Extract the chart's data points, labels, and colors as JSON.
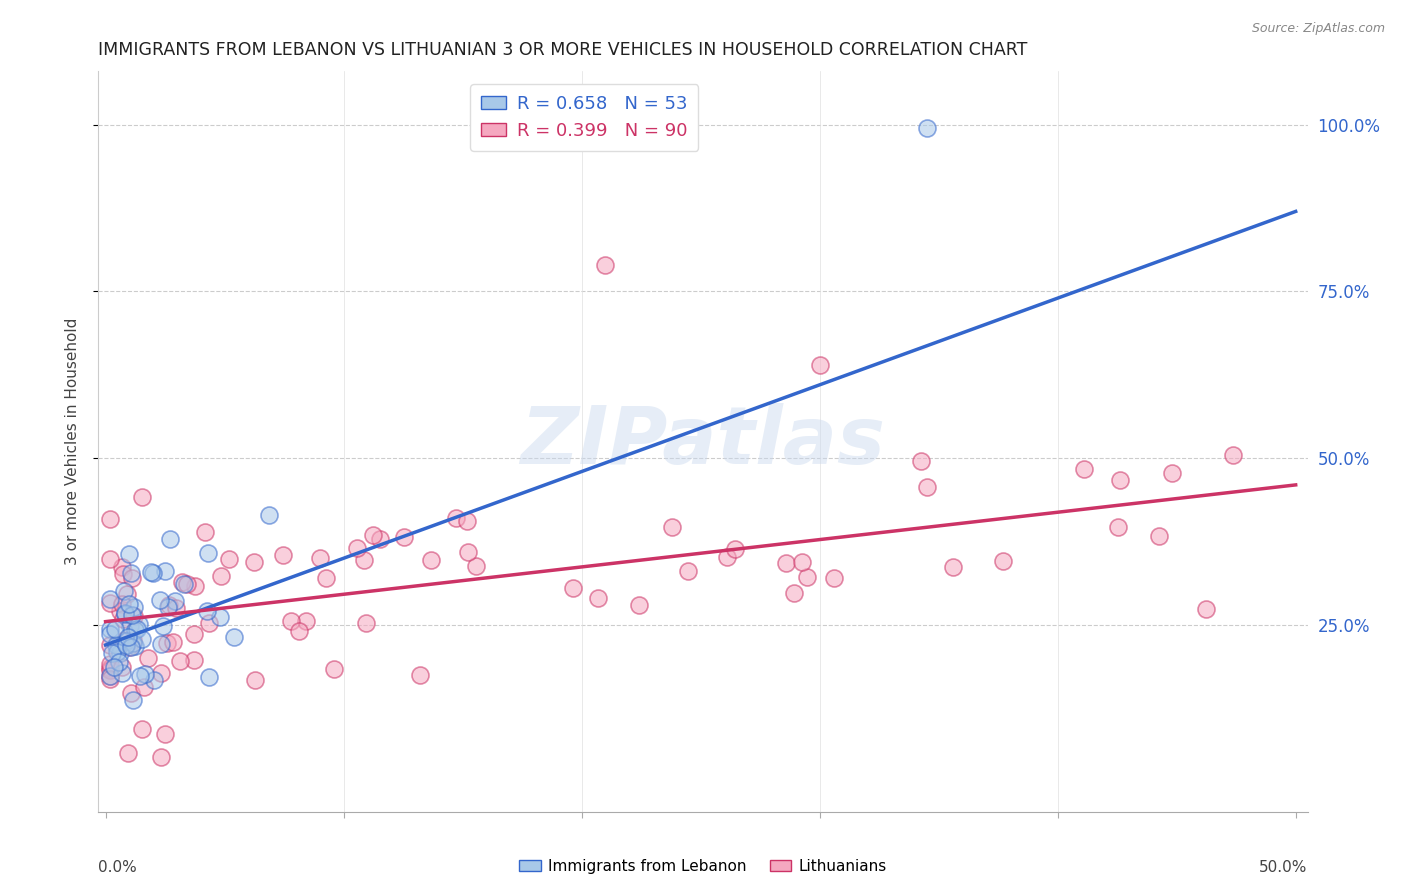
{
  "title": "IMMIGRANTS FROM LEBANON VS LITHUANIAN 3 OR MORE VEHICLES IN HOUSEHOLD CORRELATION CHART",
  "source": "Source: ZipAtlas.com",
  "ylabel": "3 or more Vehicles in Household",
  "ytick_values": [
    0.25,
    0.5,
    0.75,
    1.0
  ],
  "xlim": [
    0.0,
    0.5
  ],
  "ylim": [
    0.0,
    1.05
  ],
  "legend_label1": "R = 0.658   N = 53",
  "legend_label2": "R = 0.399   N = 90",
  "color_blue": "#a8c8e8",
  "color_pink": "#f5a8c0",
  "line_color_blue": "#3366cc",
  "line_color_pink": "#cc3366",
  "watermark": "ZIPatlas",
  "blue_intercept": 0.22,
  "blue_slope": 1.3,
  "pink_intercept": 0.25,
  "pink_slope": 0.48
}
